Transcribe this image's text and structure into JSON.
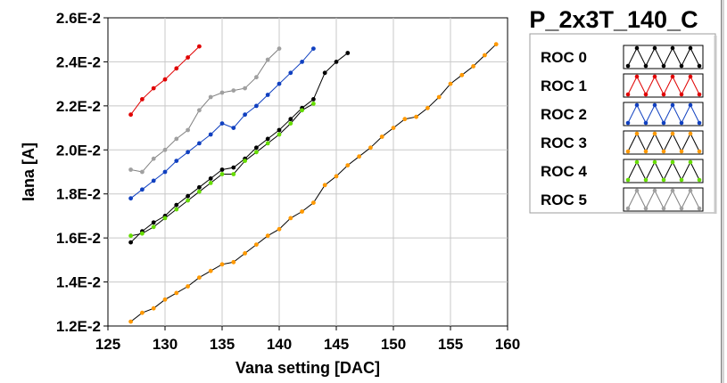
{
  "legend": {
    "title": "P_2x3T_140_C",
    "items": [
      {
        "label": "ROC 0",
        "color": "#000000"
      },
      {
        "label": "ROC 1",
        "color": "#e00000"
      },
      {
        "label": "ROC 2",
        "color": "#1040c0"
      },
      {
        "label": "ROC 3",
        "color": "#ff9900"
      },
      {
        "label": "ROC 4",
        "color": "#66dd00"
      },
      {
        "label": "ROC 5",
        "color": "#a0a0a0"
      }
    ]
  },
  "chart_data": {
    "type": "line",
    "xlabel": "Vana setting [DAC]",
    "ylabel": "Iana [A]",
    "xlim": [
      125,
      160
    ],
    "ylim": [
      0.012,
      0.026
    ],
    "xticks": [
      125,
      130,
      135,
      140,
      145,
      150,
      155,
      160
    ],
    "xtick_labels": [
      "125",
      "130",
      "135",
      "140",
      "145",
      "150",
      "155",
      "160"
    ],
    "yticks": [
      0.012,
      0.014,
      0.016,
      0.018,
      0.02,
      0.022,
      0.024,
      0.026
    ],
    "ytick_labels": [
      "1.2E-2",
      "1.4E-2",
      "1.6E-2",
      "1.8E-2",
      "2.0E-2",
      "2.2E-2",
      "2.4E-2",
      "2.6E-2"
    ],
    "grid": true,
    "legend_position": "right",
    "series": [
      {
        "name": "ROC 0",
        "color": "#000000",
        "line_color": "#000000",
        "x": [
          127,
          128,
          129,
          130,
          131,
          132,
          133,
          134,
          135,
          136,
          137,
          138,
          139,
          140,
          141,
          142,
          143,
          144,
          145,
          146
        ],
        "y": [
          0.0158,
          0.0163,
          0.0167,
          0.017,
          0.0175,
          0.0179,
          0.0183,
          0.0187,
          0.0191,
          0.0192,
          0.0196,
          0.0201,
          0.0205,
          0.0209,
          0.0214,
          0.0219,
          0.0223,
          0.0235,
          0.024,
          0.0244
        ]
      },
      {
        "name": "ROC 1",
        "color": "#e00000",
        "line_color": "#e00000",
        "x": [
          127,
          128,
          129,
          130,
          131,
          132,
          133
        ],
        "y": [
          0.0216,
          0.0223,
          0.0228,
          0.0232,
          0.0237,
          0.0242,
          0.0247
        ]
      },
      {
        "name": "ROC 2",
        "color": "#1040c0",
        "line_color": "#1040c0",
        "x": [
          127,
          128,
          129,
          130,
          131,
          132,
          133,
          134,
          135,
          136,
          137,
          138,
          139,
          140,
          141,
          142,
          143
        ],
        "y": [
          0.0178,
          0.0182,
          0.0186,
          0.019,
          0.0195,
          0.0199,
          0.0203,
          0.0207,
          0.0212,
          0.021,
          0.0216,
          0.022,
          0.0225,
          0.023,
          0.0235,
          0.024,
          0.0246
        ]
      },
      {
        "name": "ROC 3",
        "color": "#ff9900",
        "line_color": "#000000",
        "x": [
          127,
          128,
          129,
          130,
          131,
          132,
          133,
          134,
          135,
          136,
          137,
          138,
          139,
          140,
          141,
          142,
          143,
          144,
          145,
          146,
          147,
          148,
          149,
          150,
          151,
          152,
          153,
          154,
          155,
          156,
          157,
          158,
          159
        ],
        "y": [
          0.0122,
          0.0126,
          0.0128,
          0.0132,
          0.0135,
          0.0138,
          0.0142,
          0.0145,
          0.0148,
          0.0149,
          0.0153,
          0.0157,
          0.0161,
          0.0164,
          0.0169,
          0.0172,
          0.0176,
          0.0184,
          0.0188,
          0.0193,
          0.0197,
          0.0201,
          0.0206,
          0.021,
          0.0214,
          0.0215,
          0.0219,
          0.0224,
          0.023,
          0.0234,
          0.0238,
          0.0243,
          0.0248
        ]
      },
      {
        "name": "ROC 4",
        "color": "#66dd00",
        "line_color": "#000000",
        "x": [
          127,
          128,
          129,
          130,
          131,
          132,
          133,
          134,
          135,
          136,
          137,
          138,
          139,
          140,
          141,
          142,
          143
        ],
        "y": [
          0.0161,
          0.0162,
          0.0165,
          0.0169,
          0.0173,
          0.0177,
          0.0181,
          0.0185,
          0.0189,
          0.0189,
          0.0195,
          0.0199,
          0.0203,
          0.0207,
          0.0212,
          0.0218,
          0.0221
        ]
      },
      {
        "name": "ROC 5",
        "color": "#a0a0a0",
        "line_color": "#808080",
        "x": [
          127,
          128,
          129,
          130,
          131,
          132,
          133,
          134,
          135,
          136,
          137,
          138,
          139,
          140
        ],
        "y": [
          0.0191,
          0.019,
          0.0196,
          0.02,
          0.0205,
          0.0209,
          0.0218,
          0.0224,
          0.0226,
          0.0227,
          0.0228,
          0.0233,
          0.0241,
          0.0246
        ]
      }
    ]
  }
}
